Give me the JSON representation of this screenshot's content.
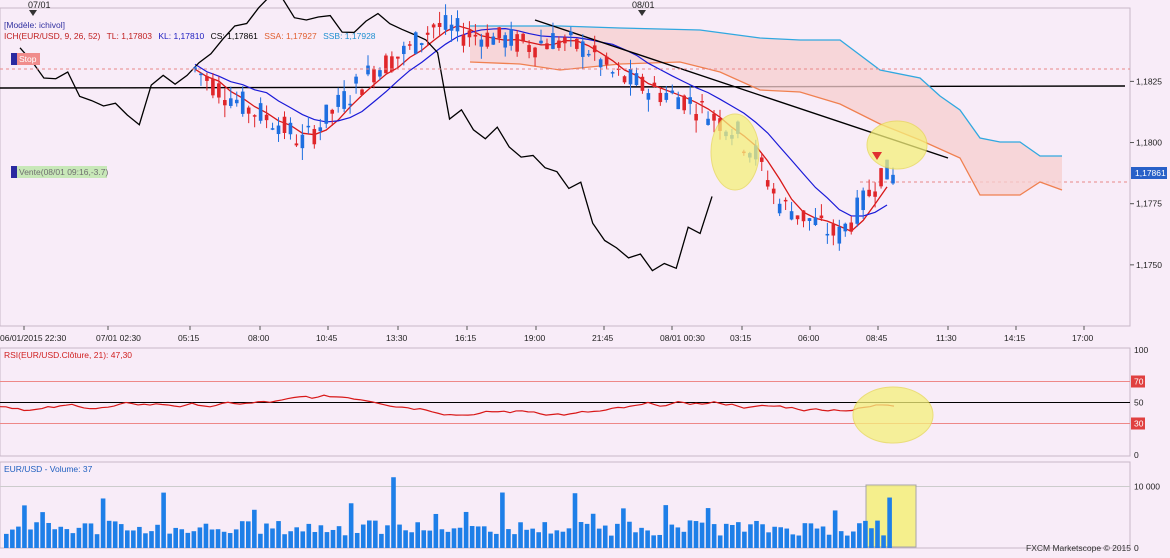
{
  "header": {
    "date_markers": [
      "07/01",
      "08/01"
    ]
  },
  "legend": {
    "model": "[Modèle: ichivol]",
    "ich_label": "ICH(EUR/USD, 9, 26, 52)",
    "tl": "TL: 1,17803",
    "kl": "KL: 1,17810",
    "cs": "CS: 1,17861",
    "ssa": "SSA: 1,17927",
    "ssb": "SSB: 1,17928"
  },
  "badges": {
    "stop": "Stop",
    "vente": "Vente(08/01 09:16,-3.7)",
    "price": "1,17861"
  },
  "rsi_panel": {
    "label": "RSI(EUR/USD.Clôture, 21): 47,30"
  },
  "volume_panel": {
    "label": "EUR/USD - Volume: 37"
  },
  "footer": {
    "copyright": "FXCM Marketscope © 2015"
  },
  "colors": {
    "background": "#f8ecf8",
    "up_candle": "#1e6fe0",
    "down_candle": "#e0262a",
    "tenkan": "#d81818",
    "kijun": "#1a1ad8",
    "chikou": "#000000",
    "ssa": "#f08050",
    "ssb": "#30a8e0",
    "kumo": "#f7cfcf",
    "highlight": "#f5f07a",
    "volume": "#1e7fe8",
    "rsi_line": "#d81818"
  },
  "chart_data": [
    {
      "type": "candlestick",
      "title": "",
      "ylim": [
        1.1725,
        1.1855
      ],
      "y_ticks": [
        "1,1825",
        "1,1800",
        "1,1775",
        "1,1750"
      ],
      "x_ticks": [
        "06/01/2015 22:30",
        "07/01 02:30",
        "05:15",
        "08:00",
        "10:45",
        "13:30",
        "16:15",
        "19:00",
        "21:45",
        "08/01 00:30",
        "03:15",
        "06:00",
        "08:45",
        "11:30",
        "14:15",
        "17:00"
      ],
      "indicators": [
        "ICH(EUR/USD, 9, 26, 52)"
      ],
      "horizontal_line": 1.182,
      "current_price": 1.17861,
      "trend_line": [
        [
          1.1855,
          1.179
        ]
      ]
    },
    {
      "type": "line",
      "title": "RSI(EUR/USD.Clôture, 21): 47,30",
      "ylim": [
        0,
        100
      ],
      "y_ticks": [
        "100",
        "70",
        "50",
        "30",
        "0"
      ],
      "levels": [
        70,
        50,
        30
      ],
      "last_value": 47.3
    },
    {
      "type": "bar",
      "title": "EUR/USD - Volume: 37",
      "y_ticks": [
        "10 000",
        "0"
      ],
      "last_value": 37
    }
  ]
}
